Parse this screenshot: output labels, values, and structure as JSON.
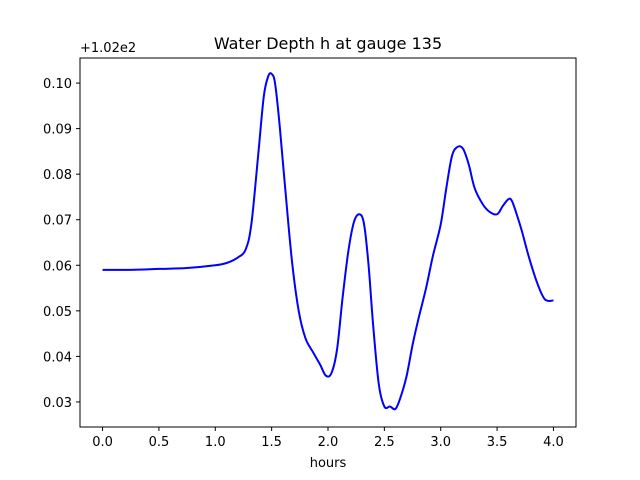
{
  "chart_data": {
    "type": "line",
    "title": "Water Depth h at gauge 135",
    "xlabel": "hours",
    "ylabel": "",
    "y_offset_label": "+1.02e2",
    "xlim": [
      -0.2,
      4.2
    ],
    "ylim": [
      0.0245,
      0.1055
    ],
    "x_ticks": [
      0.0,
      0.5,
      1.0,
      1.5,
      2.0,
      2.5,
      3.0,
      3.5,
      4.0
    ],
    "x_tick_labels": [
      "0.0",
      "0.5",
      "1.0",
      "1.5",
      "2.0",
      "2.5",
      "3.0",
      "3.5",
      "4.0"
    ],
    "y_ticks": [
      0.03,
      0.04,
      0.05,
      0.06,
      0.07,
      0.08,
      0.09,
      0.1
    ],
    "y_tick_labels": [
      "0.03",
      "0.04",
      "0.05",
      "0.06",
      "0.07",
      "0.08",
      "0.09",
      "0.10"
    ],
    "grid": false,
    "series": [
      {
        "color": "#0000ff",
        "x": [
          0.0,
          0.25,
          0.5,
          0.75,
          1.0,
          1.1,
          1.2,
          1.27,
          1.32,
          1.38,
          1.43,
          1.47,
          1.5,
          1.53,
          1.57,
          1.62,
          1.68,
          1.74,
          1.8,
          1.87,
          1.93,
          1.98,
          2.03,
          2.08,
          2.13,
          2.18,
          2.23,
          2.28,
          2.32,
          2.36,
          2.4,
          2.45,
          2.5,
          2.55,
          2.6,
          2.65,
          2.7,
          2.75,
          2.8,
          2.87,
          2.93,
          3.0,
          3.05,
          3.1,
          3.15,
          3.2,
          3.25,
          3.3,
          3.37,
          3.43,
          3.5,
          3.55,
          3.6,
          3.63,
          3.67,
          3.72,
          3.78,
          3.85,
          3.91,
          3.95,
          4.0
        ],
        "y": [
          0.059,
          0.059,
          0.0592,
          0.0594,
          0.06,
          0.0605,
          0.0617,
          0.0635,
          0.069,
          0.084,
          0.097,
          0.1015,
          0.102,
          0.1,
          0.091,
          0.077,
          0.061,
          0.05,
          0.044,
          0.0408,
          0.0382,
          0.0358,
          0.0363,
          0.0415,
          0.053,
          0.063,
          0.0695,
          0.0712,
          0.069,
          0.06,
          0.047,
          0.034,
          0.029,
          0.029,
          0.0285,
          0.0315,
          0.036,
          0.0425,
          0.048,
          0.055,
          0.062,
          0.069,
          0.077,
          0.084,
          0.086,
          0.0855,
          0.082,
          0.077,
          0.0735,
          0.0718,
          0.0712,
          0.073,
          0.0745,
          0.0742,
          0.0715,
          0.0675,
          0.062,
          0.0565,
          0.053,
          0.0522,
          0.0523
        ]
      }
    ]
  }
}
